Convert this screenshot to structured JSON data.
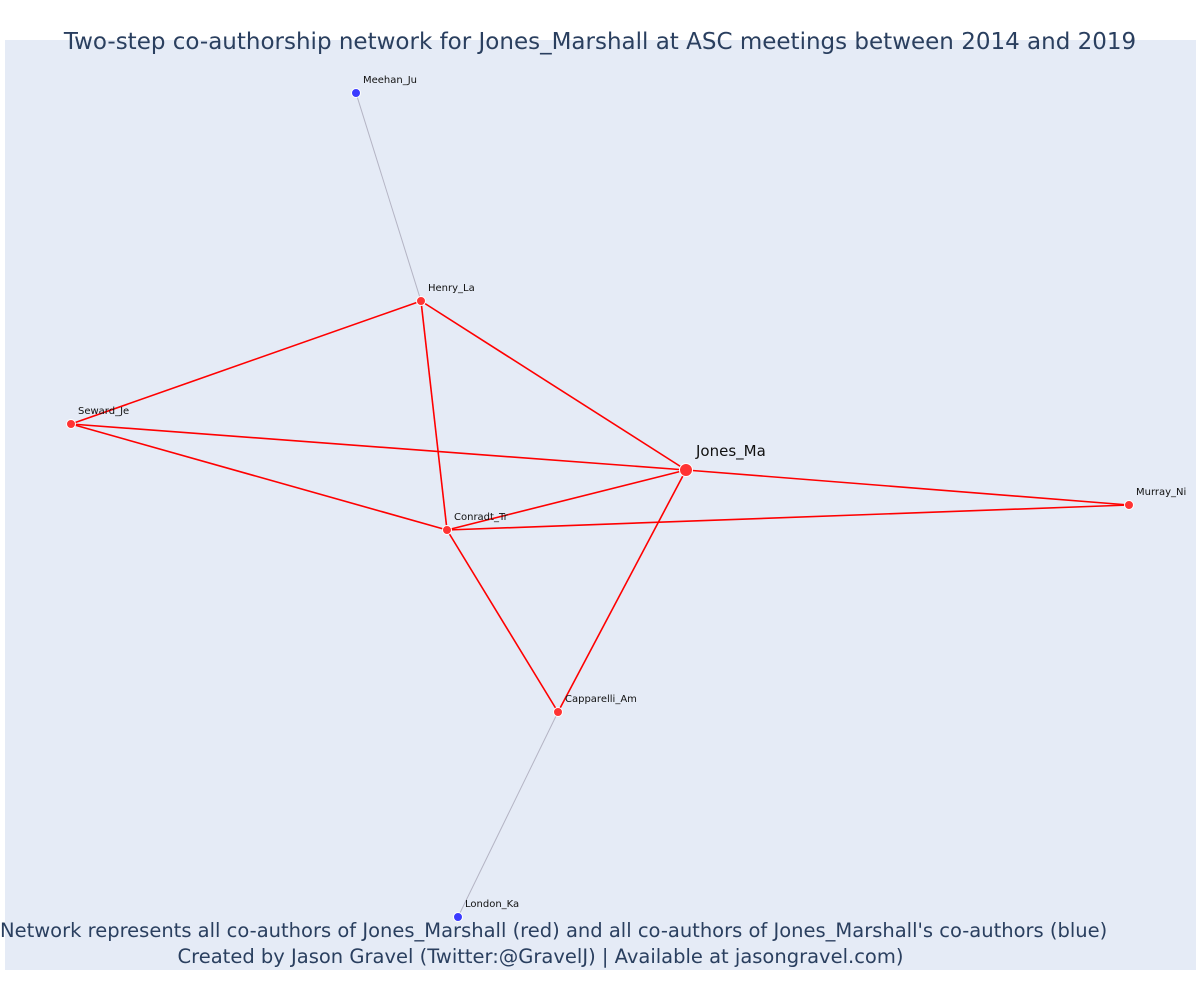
{
  "title": "Two-step co-authorship network for Jones_Marshall at ASC meetings between 2014 and 2019",
  "caption": {
    "line1": "Network represents all co-authors of Jones_Marshall (red) and all co-authors of Jones_Marshall's co-authors (blue)",
    "line2": "Created by Jason Gravel (Twitter:@GravelJ) | Available at jasongravel.com)"
  },
  "colors": {
    "background": "#e5ebf6",
    "direct_coauthor": "#ff3333",
    "second_step": "#3b3bff",
    "direct_edge": "#ff0000",
    "second_step_edge": "#b4b4c4"
  },
  "network": {
    "nodes": [
      {
        "id": "Jones_Ma",
        "group": "focal"
      },
      {
        "id": "Henry_La",
        "group": "coauthor"
      },
      {
        "id": "Seward_Je",
        "group": "coauthor"
      },
      {
        "id": "Conradt_Tr",
        "group": "coauthor"
      },
      {
        "id": "Capparelli_Am",
        "group": "coauthor"
      },
      {
        "id": "Murray_Ni",
        "group": "coauthor"
      },
      {
        "id": "Meehan_Ju",
        "group": "second"
      },
      {
        "id": "London_Ka",
        "group": "second"
      }
    ],
    "edges": [
      {
        "source": "Henry_La",
        "target": "Seward_Je",
        "type": "direct"
      },
      {
        "source": "Henry_La",
        "target": "Conradt_Tr",
        "type": "direct"
      },
      {
        "source": "Henry_La",
        "target": "Jones_Ma",
        "type": "direct"
      },
      {
        "source": "Seward_Je",
        "target": "Jones_Ma",
        "type": "direct"
      },
      {
        "source": "Seward_Je",
        "target": "Conradt_Tr",
        "type": "direct"
      },
      {
        "source": "Conradt_Tr",
        "target": "Jones_Ma",
        "type": "direct"
      },
      {
        "source": "Conradt_Tr",
        "target": "Murray_Ni",
        "type": "direct"
      },
      {
        "source": "Conradt_Tr",
        "target": "Capparelli_Am",
        "type": "direct"
      },
      {
        "source": "Jones_Ma",
        "target": "Murray_Ni",
        "type": "direct"
      },
      {
        "source": "Jones_Ma",
        "target": "Capparelli_Am",
        "type": "direct"
      },
      {
        "source": "Meehan_Ju",
        "target": "Henry_La",
        "type": "second"
      },
      {
        "source": "London_Ka",
        "target": "Capparelli_Am",
        "type": "second"
      }
    ]
  }
}
